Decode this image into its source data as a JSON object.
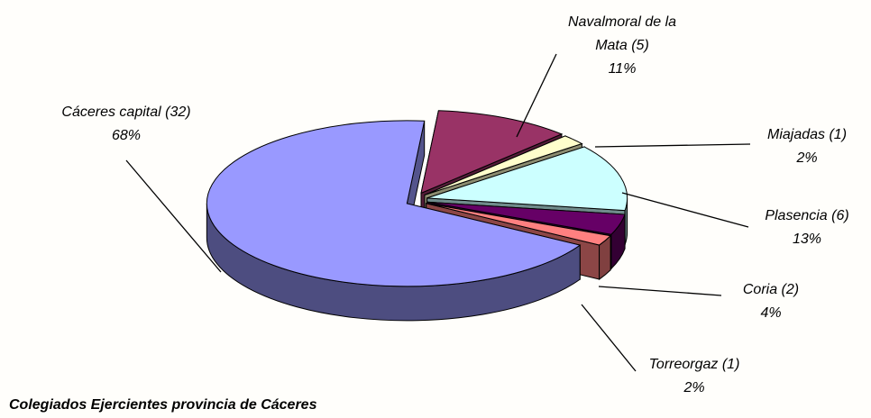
{
  "chart_data": {
    "type": "pie3d",
    "title": "Colegiados Ejercientes provincia de Cáceres",
    "categories": [
      "Cáceres capital (32)",
      "Navalmoral de la Mata (5)",
      "Miajadas (1)",
      "Plasencia (6)",
      "Coria (2)",
      "Torreorgaz (1)"
    ],
    "values": [
      68,
      11,
      2,
      13,
      4,
      2
    ],
    "value_labels": [
      "68%",
      "11%",
      "2%",
      "13%",
      "4%",
      "2%"
    ],
    "colors": [
      "#9999ff",
      "#993366",
      "#ffffcc",
      "#ccffff",
      "#660066",
      "#ff8080"
    ]
  }
}
